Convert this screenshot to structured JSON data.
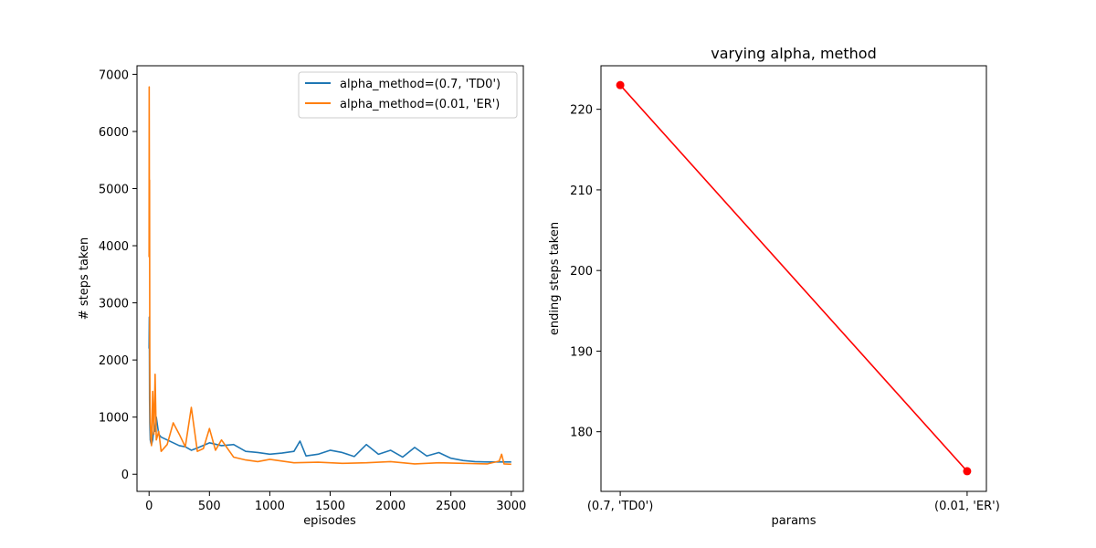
{
  "chart_data": [
    {
      "type": "line",
      "title": "",
      "xlabel": "episodes",
      "ylabel": "# steps taken",
      "xlim": [
        -100,
        3100
      ],
      "ylim": [
        -300,
        7150
      ],
      "x_ticks": [
        0,
        500,
        1000,
        1500,
        2000,
        2500,
        3000
      ],
      "y_ticks": [
        0,
        1000,
        2000,
        3000,
        4000,
        5000,
        6000,
        7000
      ],
      "x_tick_labels": [
        "0",
        "500",
        "1000",
        "1500",
        "2000",
        "2500",
        "3000"
      ],
      "y_tick_labels": [
        "0",
        "1000",
        "2000",
        "3000",
        "4000",
        "5000",
        "6000",
        "7000"
      ],
      "legend_position": "top-right",
      "grid": false,
      "series": [
        {
          "name": "alpha_method=(0.7, 'TD0')",
          "color": "#1f77b4",
          "x": [
            0,
            2,
            4,
            6,
            8,
            10,
            14,
            20,
            30,
            40,
            50,
            60,
            80,
            100,
            150,
            200,
            250,
            300,
            350,
            400,
            500,
            600,
            700,
            800,
            900,
            1000,
            1100,
            1200,
            1250,
            1300,
            1400,
            1500,
            1600,
            1700,
            1800,
            1900,
            2000,
            2100,
            2200,
            2300,
            2400,
            2500,
            2600,
            2700,
            2800,
            2900,
            3000
          ],
          "values": [
            2200,
            2750,
            1300,
            900,
            750,
            600,
            560,
            520,
            600,
            800,
            750,
            1000,
            700,
            650,
            600,
            550,
            500,
            480,
            420,
            460,
            550,
            500,
            520,
            400,
            380,
            350,
            370,
            400,
            580,
            320,
            350,
            420,
            380,
            310,
            520,
            350,
            420,
            300,
            470,
            320,
            380,
            280,
            240,
            220,
            215,
            215,
            215
          ]
        },
        {
          "name": "alpha_method=(0.01, 'ER')",
          "color": "#ff7f0e",
          "x": [
            0,
            1,
            2,
            3,
            4,
            5,
            6,
            8,
            10,
            14,
            20,
            30,
            40,
            50,
            60,
            80,
            100,
            150,
            200,
            250,
            300,
            350,
            400,
            450,
            500,
            550,
            600,
            700,
            800,
            900,
            1000,
            1200,
            1400,
            1600,
            1800,
            2000,
            2200,
            2400,
            2600,
            2800,
            2900,
            2920,
            2940,
            3000
          ],
          "values": [
            3800,
            6780,
            5700,
            4200,
            5150,
            3500,
            2000,
            1200,
            900,
            650,
            500,
            1450,
            700,
            1750,
            600,
            750,
            400,
            520,
            900,
            700,
            480,
            1170,
            400,
            450,
            800,
            420,
            600,
            300,
            250,
            220,
            260,
            200,
            210,
            190,
            200,
            220,
            180,
            200,
            190,
            180,
            230,
            350,
            180,
            175
          ]
        }
      ]
    },
    {
      "type": "line",
      "title": "varying alpha, method",
      "xlabel": "params",
      "ylabel": "ending steps taken",
      "categories": [
        "(0.7, 'TD0')",
        "(0.01, 'ER')"
      ],
      "ylim": [
        172.6,
        225.4
      ],
      "y_ticks": [
        180,
        190,
        200,
        210,
        220
      ],
      "y_tick_labels": [
        "180",
        "190",
        "200",
        "210",
        "220"
      ],
      "grid": false,
      "series": [
        {
          "color": "#ff0000",
          "marker": "circle",
          "values": [
            223,
            175.1
          ]
        }
      ]
    }
  ]
}
